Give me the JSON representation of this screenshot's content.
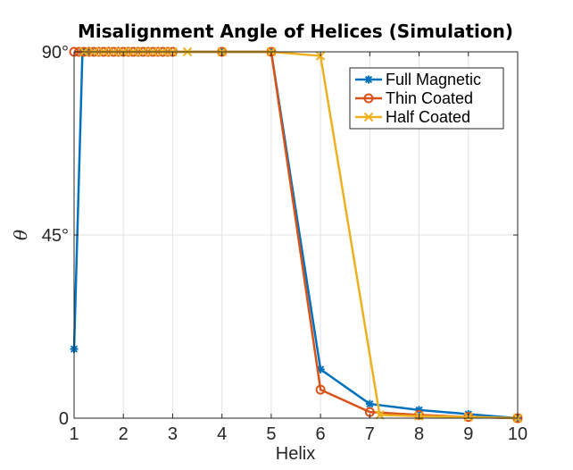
{
  "chart_data": {
    "type": "line",
    "title": "Misalignment Angle of Helices (Simulation)",
    "xlabel": "Helix",
    "ylabel": "θ",
    "xlim": [
      1,
      10
    ],
    "ylim": [
      0,
      90
    ],
    "x_ticks": [
      1,
      2,
      3,
      4,
      5,
      6,
      7,
      8,
      9,
      10
    ],
    "y_ticks": [
      0,
      45,
      90
    ],
    "y_tick_labels": [
      "0",
      "45°",
      "90°"
    ],
    "grid": true,
    "legend_position": "top-right",
    "series": [
      {
        "name": "Full Magnetic",
        "color": "#0072BD",
        "marker": "asterisk",
        "x": [
          1.0,
          1.17,
          1.25,
          1.33,
          4.0,
          5.0,
          6.0,
          7.0,
          8.0,
          9.0,
          10.0
        ],
        "y": [
          17,
          90,
          90,
          90,
          90,
          90,
          12,
          3.5,
          2,
          1,
          0
        ]
      },
      {
        "name": "Thin Coated",
        "color": "#D95319",
        "marker": "circle",
        "x": [
          1.0,
          1.1,
          1.2,
          1.3,
          1.4,
          1.5,
          1.6,
          1.7,
          1.8,
          1.9,
          2.0,
          2.1,
          2.2,
          2.3,
          2.4,
          2.5,
          2.6,
          2.7,
          2.8,
          2.9,
          3.0,
          4.0,
          5.0,
          6.0,
          7.0,
          8.0,
          9.0,
          10.0
        ],
        "y": [
          90,
          90,
          90,
          90,
          90,
          90,
          90,
          90,
          90,
          90,
          90,
          90,
          90,
          90,
          90,
          90,
          90,
          90,
          90,
          90,
          90,
          90,
          90,
          7,
          1.5,
          0.8,
          0.3,
          0
        ]
      },
      {
        "name": "Half Coated",
        "color": "#EDB120",
        "marker": "x",
        "x": [
          1.2,
          1.4,
          1.6,
          1.8,
          2.0,
          2.2,
          2.4,
          2.6,
          2.8,
          3.0,
          3.3,
          4.0,
          5.0,
          6.0,
          7.2,
          8.0,
          9.0,
          10.0
        ],
        "y": [
          90,
          90,
          90,
          90,
          90,
          90,
          90,
          90,
          90,
          90,
          90,
          90,
          90,
          89,
          0.8,
          0.5,
          0.3,
          0
        ]
      }
    ]
  }
}
